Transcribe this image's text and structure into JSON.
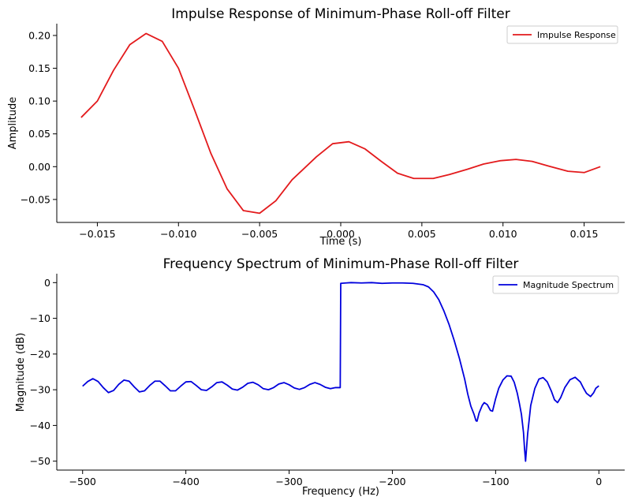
{
  "chart_data": [
    {
      "type": "line",
      "title": "Impulse Response of Minimum-Phase Roll-off Filter",
      "xlabel": "Time (s)",
      "ylabel": "Amplitude",
      "xlim": [
        -0.0175,
        0.0175
      ],
      "ylim": [
        -0.085,
        0.218
      ],
      "xticks": [
        -0.015,
        -0.01,
        -0.005,
        0.0,
        0.005,
        0.01,
        0.015
      ],
      "xtick_labels": [
        "−0.015",
        "−0.010",
        "−0.005",
        "0.000",
        "0.005",
        "0.010",
        "0.015"
      ],
      "yticks": [
        -0.05,
        0.0,
        0.05,
        0.1,
        0.15,
        0.2
      ],
      "ytick_labels": [
        "−0.05",
        "0.00",
        "0.05",
        "0.10",
        "0.15",
        "0.20"
      ],
      "grid": false,
      "legend_position": "top-right",
      "series": [
        {
          "name": "Impulse Response",
          "color": "#e31a1c",
          "x": [
            -0.016,
            -0.015,
            -0.014,
            -0.013,
            -0.012,
            -0.011,
            -0.01,
            -0.009,
            -0.008,
            -0.007,
            -0.006,
            -0.005,
            -0.004,
            -0.003,
            -0.0015,
            -0.0005,
            0.0005,
            0.0015,
            0.0025,
            0.0035,
            0.0045,
            0.0057,
            0.0067,
            0.0078,
            0.0088,
            0.0098,
            0.0108,
            0.0118,
            0.0128,
            0.014,
            0.015,
            0.016
          ],
          "y": [
            0.075,
            0.1,
            0.147,
            0.186,
            0.203,
            0.191,
            0.15,
            0.086,
            0.02,
            -0.034,
            -0.067,
            -0.071,
            -0.052,
            -0.02,
            0.015,
            0.035,
            0.038,
            0.027,
            0.008,
            -0.01,
            -0.018,
            -0.018,
            -0.012,
            -0.004,
            0.004,
            0.009,
            0.011,
            0.008,
            0.001,
            -0.007,
            -0.009,
            0.0
          ]
        }
      ]
    },
    {
      "type": "line",
      "title": "Frequency Spectrum of Minimum-Phase Roll-off Filter",
      "xlabel": "Frequency (Hz)",
      "ylabel": "Magnitude (dB)",
      "xlim": [
        -525,
        25
      ],
      "ylim": [
        -52.5,
        2.5
      ],
      "xticks": [
        -500,
        -400,
        -300,
        -200,
        -100,
        0
      ],
      "xtick_labels": [
        "−500",
        "−400",
        "−300",
        "−200",
        "−100",
        "0"
      ],
      "yticks": [
        -50,
        -40,
        -30,
        -20,
        -10,
        0
      ],
      "ytick_labels": [
        "−50",
        "−40",
        "−30",
        "−20",
        "−10",
        "0"
      ],
      "grid": false,
      "legend_position": "top-right",
      "series": [
        {
          "name": "Magnitude Spectrum",
          "color": "#0000dd",
          "x": [
            -500,
            -495,
            -490,
            -485,
            -480,
            -475,
            -470,
            -465,
            -460,
            -455,
            -450,
            -445,
            -440,
            -435,
            -430,
            -425,
            -420,
            -415,
            -410,
            -405,
            -400,
            -395,
            -390,
            -385,
            -380,
            -375,
            -370,
            -365,
            -360,
            -355,
            -350,
            -345,
            -340,
            -335,
            -330,
            -325,
            -320,
            -315,
            -310,
            -305,
            -300,
            -295,
            -290,
            -285,
            -280,
            -275,
            -270,
            -265,
            -260,
            -255,
            -250.5,
            -250,
            -245,
            -240,
            -230,
            -220,
            -210,
            -200,
            -190,
            -180,
            -170,
            -165,
            -160,
            -155,
            -150,
            -145,
            -140,
            -135,
            -130,
            -127,
            -124,
            -121,
            -119,
            -118,
            -116,
            -113,
            -111,
            -108,
            -105,
            -103,
            -100,
            -97,
            -93,
            -89,
            -85,
            -82,
            -79,
            -77,
            -75,
            -73,
            -72,
            -71,
            -69,
            -66,
            -62,
            -58,
            -54,
            -50,
            -46,
            -43,
            -40,
            -37,
            -33,
            -28,
            -23,
            -18,
            -15,
            -12,
            -8,
            -5,
            -3,
            0
          ],
          "y": [
            -29.0,
            -27.7,
            -26.9,
            -27.7,
            -29.4,
            -30.8,
            -30.2,
            -28.5,
            -27.3,
            -27.6,
            -29.2,
            -30.6,
            -30.3,
            -28.8,
            -27.6,
            -27.6,
            -28.9,
            -30.3,
            -30.3,
            -29.0,
            -27.8,
            -27.7,
            -28.8,
            -30.0,
            -30.2,
            -29.2,
            -28.0,
            -27.8,
            -28.7,
            -29.8,
            -30.1,
            -29.3,
            -28.2,
            -27.9,
            -28.6,
            -29.7,
            -30.0,
            -29.4,
            -28.4,
            -28.0,
            -28.6,
            -29.5,
            -29.9,
            -29.4,
            -28.5,
            -28.0,
            -28.5,
            -29.3,
            -29.7,
            -29.4,
            -29.4,
            -0.2,
            -0.1,
            0.0,
            -0.1,
            0.0,
            -0.2,
            -0.1,
            -0.1,
            -0.2,
            -0.6,
            -1.2,
            -2.6,
            -4.8,
            -8.0,
            -11.8,
            -16.3,
            -21.3,
            -27.0,
            -31.2,
            -34.6,
            -36.8,
            -38.7,
            -38.8,
            -36.5,
            -34.4,
            -33.6,
            -34.2,
            -35.8,
            -36.0,
            -32.5,
            -29.6,
            -27.3,
            -26.1,
            -26.2,
            -27.9,
            -31.0,
            -33.8,
            -36.9,
            -42.0,
            -46.5,
            -50.0,
            -42.4,
            -34.4,
            -29.6,
            -27.0,
            -26.6,
            -27.8,
            -30.4,
            -32.8,
            -33.6,
            -32.2,
            -29.4,
            -27.2,
            -26.5,
            -27.8,
            -29.5,
            -31.0,
            -31.9,
            -30.8,
            -29.6,
            -28.9
          ]
        }
      ]
    }
  ]
}
